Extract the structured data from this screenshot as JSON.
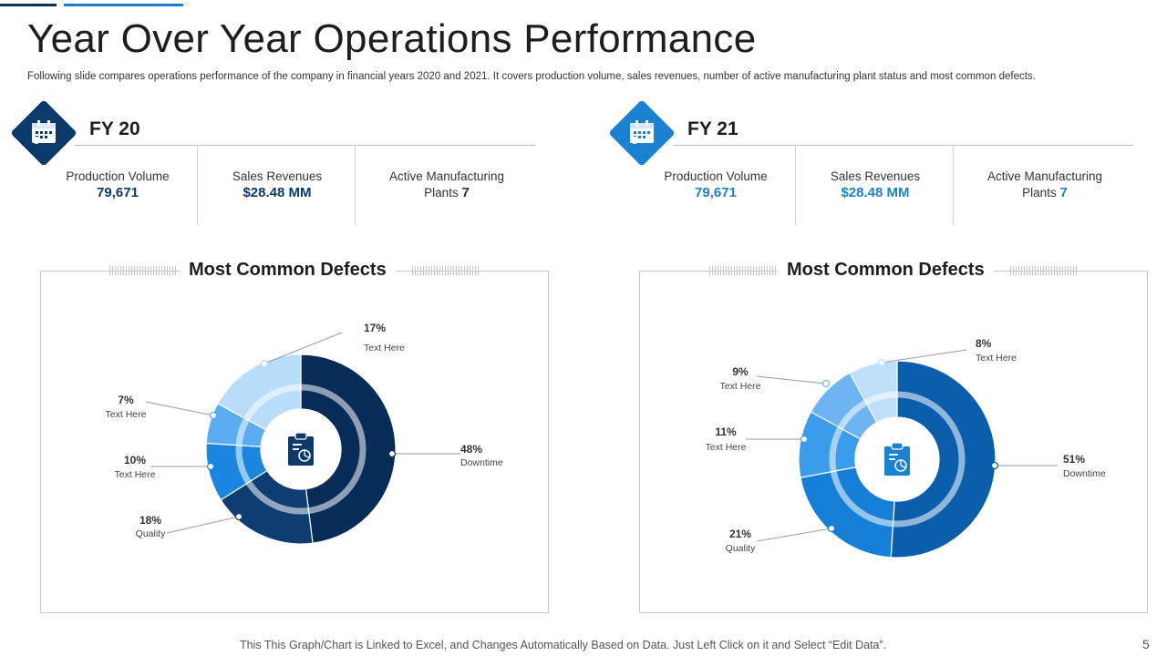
{
  "title": "Year Over Year Operations Performance",
  "subtitle": "Following slide compares operations performance of the company in financial years 2020 and 2021. It covers production volume, sales revenues, number of active manufacturing plant status and most common defects.",
  "fy20": {
    "label": "FY 20",
    "accent": "#0b3a6b",
    "production_label": "Production Volume",
    "production_value": "79,671",
    "sales_label": "Sales Revenues",
    "sales_value": "$28.48 MM",
    "plants_label_1": "Active Manufacturing",
    "plants_label_2": "Plants",
    "plants_value": "7",
    "icon": "calendar-icon"
  },
  "fy21": {
    "label": "FY 21",
    "accent": "#1a82d0",
    "production_label": "Production Volume",
    "production_value": "79,671",
    "sales_label": "Sales Revenues",
    "sales_value": "$28.48 MM",
    "plants_label_1": "Active Manufacturing",
    "plants_label_2": "Plants",
    "plants_value": "7",
    "icon": "calendar-icon"
  },
  "chart_data": [
    {
      "type": "pie",
      "title": "Most Common Defects",
      "categories": [
        "Downtime",
        "Quality",
        "Text Here",
        "Text Here",
        "Text Here"
      ],
      "values": [
        48,
        18,
        10,
        7,
        17
      ],
      "percent_labels": [
        "48%",
        "18%",
        "10%",
        "7%",
        "17%"
      ],
      "colors": [
        "#062c57",
        "#0d3d73",
        "#1a86e0",
        "#5aadf0",
        "#b9dcf8"
      ]
    },
    {
      "type": "pie",
      "title": "Most Common Defects",
      "categories": [
        "Downtime",
        "Quality",
        "Text Here",
        "Text Here",
        "Text Here"
      ],
      "values": [
        51,
        21,
        11,
        9,
        8
      ],
      "percent_labels": [
        "51%",
        "21%",
        "11%",
        "9%",
        "8%"
      ],
      "colors": [
        "#0a5eab",
        "#157fd8",
        "#3c9cec",
        "#6cb5f2",
        "#bfe0fa"
      ]
    }
  ],
  "footer": "This This Graph/Chart is Linked to Excel, and Changes Automatically Based on Data. Just Left Click on it and Select “Edit Data”.",
  "page_number": "5"
}
